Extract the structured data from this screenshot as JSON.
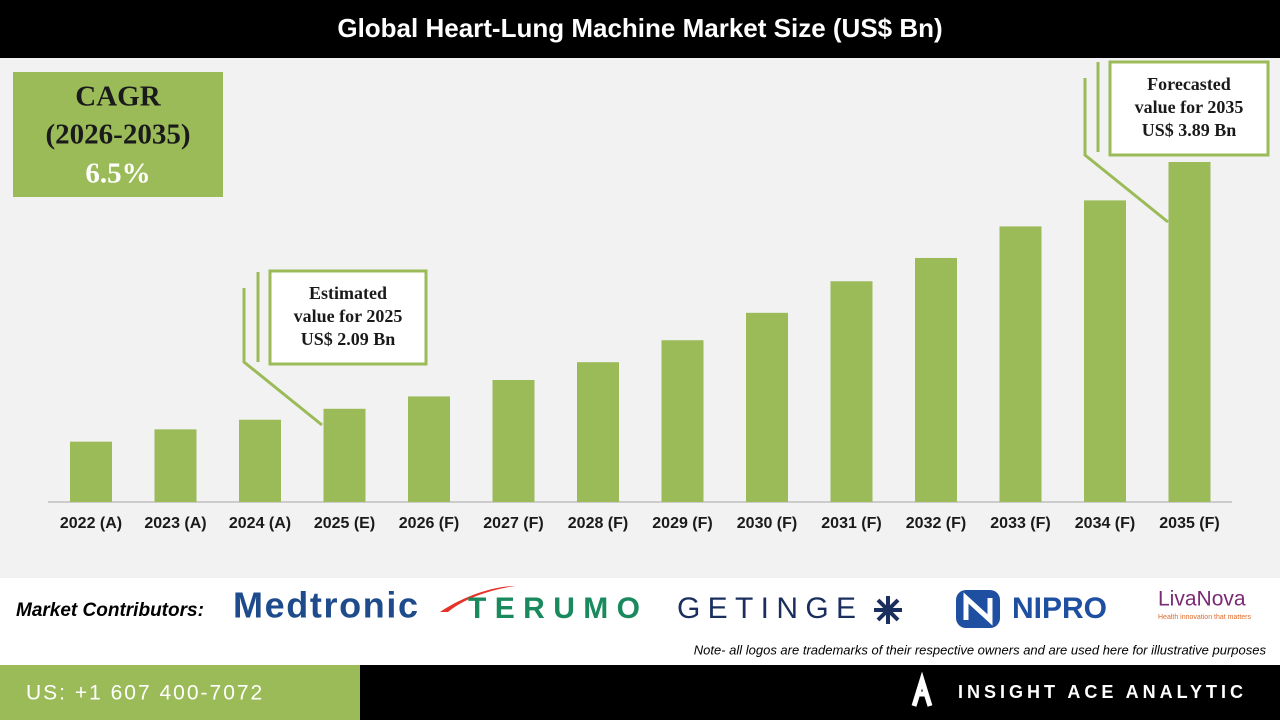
{
  "chart_data": {
    "type": "bar",
    "title": "Global Heart-Lung Machine Market Size (US$ Bn)",
    "categories": [
      "2022 (A)",
      "2023 (A)",
      "2024 (A)",
      "2025 (E)",
      "2026 (F)",
      "2027 (F)",
      "2028 (F)",
      "2029 (F)",
      "2030 (F)",
      "2031 (F)",
      "2032 (F)",
      "2033 (F)",
      "2034 (F)",
      "2035 (F)"
    ],
    "values": [
      1.85,
      1.94,
      2.01,
      2.09,
      2.18,
      2.3,
      2.43,
      2.59,
      2.79,
      3.02,
      3.19,
      3.42,
      3.61,
      3.89
    ],
    "color": "#9bbb59",
    "ylim": [
      1.41,
      3.89
    ],
    "grid": false,
    "annotations": [
      {
        "lines": [
          "Estimated",
          "value for 2025",
          "US$ 2.09 Bn"
        ]
      },
      {
        "lines": [
          "Forecasted",
          "value for 2035",
          "US$ 3.89 Bn"
        ]
      }
    ],
    "cagr": {
      "lines": [
        "CAGR",
        "(2026-2035)",
        "6.5%"
      ]
    }
  },
  "contributors": {
    "label": "Market Contributors:",
    "logos": [
      "Medtronic",
      "TERUMO",
      "GETINGE",
      "NIPRO",
      "LivaNova",
      "Health innovation that matters"
    ],
    "note": "Note- all logos are trademarks of their respective owners and are used here for illustrative purposes"
  },
  "footer": {
    "phone": "US: +1 607 400-7072",
    "brand": "INSIGHT ACE ANALYTIC"
  }
}
